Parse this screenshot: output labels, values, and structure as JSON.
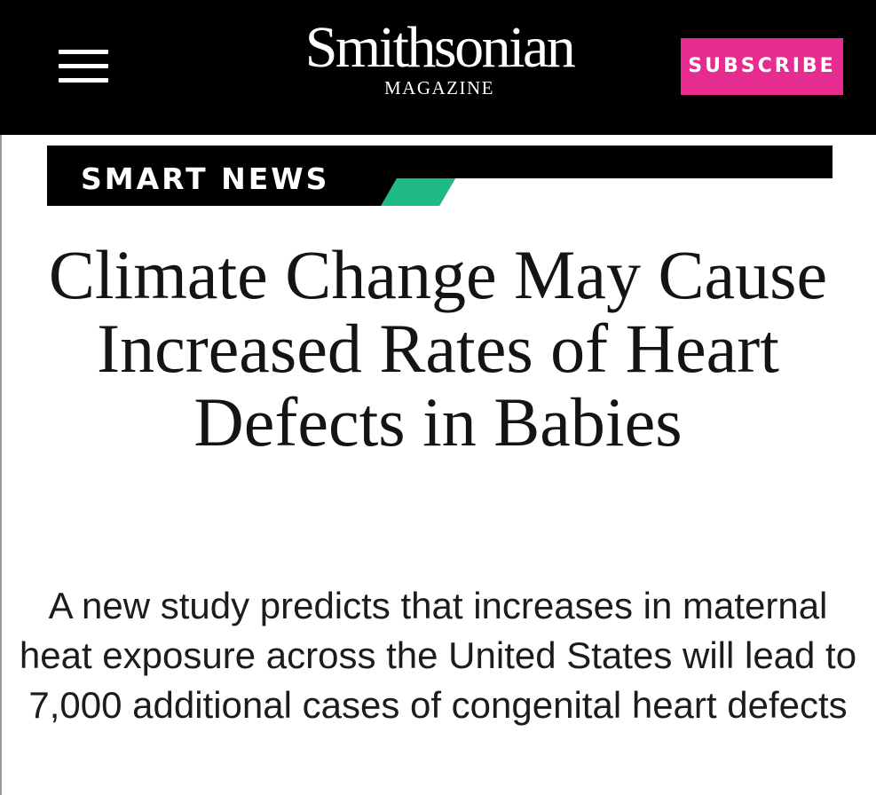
{
  "header": {
    "logo_name": "Smithsonian",
    "logo_subtitle": "MAGAZINE",
    "subscribe_label": "SUBSCRIBE",
    "menu_icon": "hamburger-menu-icon"
  },
  "section": {
    "label": "SMART NEWS",
    "accent_color": "#1fb887"
  },
  "article": {
    "headline": "Climate Change May Cause Increased Rates of Heart Defects in Babies",
    "dek": "A new study predicts that increases in maternal heat exposure across the United States will lead to 7,000 additional cases of congenital heart defects"
  },
  "colors": {
    "header_background": "#000000",
    "subscribe_background": "#e62d8f",
    "text": "#141414"
  }
}
